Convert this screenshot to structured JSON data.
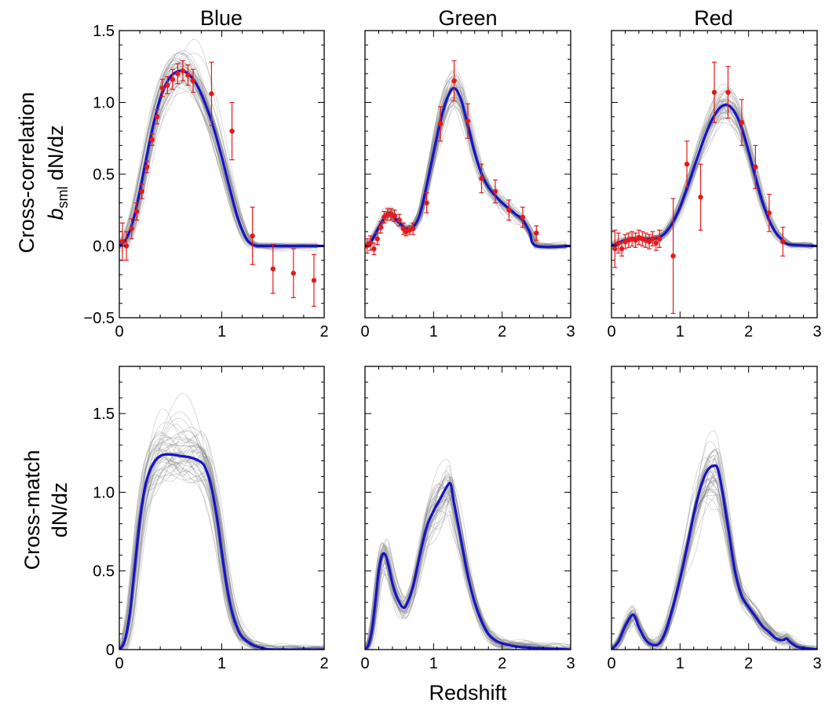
{
  "colors": {
    "median": "#1414c8",
    "points": "#e31a1c",
    "ensemble": "#7a7a7a"
  },
  "titles": {
    "blue": "Blue",
    "green": "Green",
    "red": "Red"
  },
  "ylabels": {
    "top_line1": "Cross-correlation",
    "top_line2_b": "b",
    "top_line2_sub": "sml",
    "top_line2_rest": " dN/dz",
    "bottom_line1": "Cross-match",
    "bottom_line2": "dN/dz"
  },
  "xlabel": "Redshift",
  "chart_data": [
    {
      "type": "line",
      "row": "cross-correlation",
      "column": "Blue",
      "xlim": [
        0,
        2
      ],
      "ylim": [
        -0.5,
        1.5
      ],
      "xticks": [
        "0",
        "1",
        "2"
      ],
      "yticks": [
        "1.5",
        "1.0",
        "0.5",
        "0.0",
        "−0.5"
      ],
      "median_curve": {
        "x": [
          0,
          0.05,
          0.1,
          0.15,
          0.2,
          0.25,
          0.3,
          0.35,
          0.4,
          0.45,
          0.5,
          0.55,
          0.6,
          0.65,
          0.7,
          0.75,
          0.8,
          0.85,
          0.9,
          0.95,
          1.0,
          1.05,
          1.1,
          1.15,
          1.2,
          1.25,
          1.3,
          1.35,
          1.4,
          2.0
        ],
        "y": [
          0.0,
          0.03,
          0.1,
          0.22,
          0.38,
          0.56,
          0.74,
          0.9,
          1.03,
          1.12,
          1.18,
          1.21,
          1.22,
          1.21,
          1.18,
          1.13,
          1.06,
          0.97,
          0.87,
          0.75,
          0.62,
          0.48,
          0.34,
          0.21,
          0.11,
          0.04,
          0.01,
          0.0,
          0.0,
          0.0
        ]
      },
      "points": [
        {
          "x": 0.03,
          "y": 0.03,
          "err": 0.13
        },
        {
          "x": 0.07,
          "y": 0.0,
          "err": 0.1
        },
        {
          "x": 0.12,
          "y": 0.12,
          "err": 0.07
        },
        {
          "x": 0.17,
          "y": 0.24,
          "err": 0.06
        },
        {
          "x": 0.22,
          "y": 0.38,
          "err": 0.05
        },
        {
          "x": 0.27,
          "y": 0.55,
          "err": 0.04
        },
        {
          "x": 0.32,
          "y": 0.74,
          "err": 0.04
        },
        {
          "x": 0.37,
          "y": 0.9,
          "err": 0.05
        },
        {
          "x": 0.42,
          "y": 1.1,
          "err": 0.06
        },
        {
          "x": 0.47,
          "y": 1.12,
          "err": 0.06
        },
        {
          "x": 0.52,
          "y": 1.16,
          "err": 0.07
        },
        {
          "x": 0.57,
          "y": 1.2,
          "err": 0.07
        },
        {
          "x": 0.62,
          "y": 1.22,
          "err": 0.07
        },
        {
          "x": 0.67,
          "y": 1.19,
          "err": 0.07
        },
        {
          "x": 0.72,
          "y": 1.15,
          "err": 0.08
        },
        {
          "x": 0.9,
          "y": 1.06,
          "err": 0.22
        },
        {
          "x": 1.1,
          "y": 0.8,
          "err": 0.2
        },
        {
          "x": 1.3,
          "y": 0.07,
          "err": 0.2
        },
        {
          "x": 1.5,
          "y": -0.16,
          "err": 0.17
        },
        {
          "x": 1.7,
          "y": -0.19,
          "err": 0.17
        },
        {
          "x": 1.9,
          "y": -0.24,
          "err": 0.18
        }
      ]
    },
    {
      "type": "line",
      "row": "cross-correlation",
      "column": "Green",
      "xlim": [
        0,
        3
      ],
      "ylim": [
        -0.5,
        1.5
      ],
      "xticks": [
        "0",
        "1",
        "2",
        "3"
      ],
      "yticks": [],
      "median_curve": {
        "x": [
          0,
          0.1,
          0.2,
          0.3,
          0.35,
          0.4,
          0.5,
          0.6,
          0.7,
          0.8,
          0.9,
          1.0,
          1.1,
          1.2,
          1.3,
          1.4,
          1.5,
          1.6,
          1.7,
          1.8,
          1.9,
          2.0,
          2.1,
          2.2,
          2.3,
          2.4,
          2.5,
          3.0
        ],
        "y": [
          0.0,
          0.04,
          0.13,
          0.21,
          0.23,
          0.21,
          0.16,
          0.12,
          0.13,
          0.22,
          0.42,
          0.65,
          0.87,
          1.03,
          1.1,
          1.02,
          0.84,
          0.65,
          0.5,
          0.41,
          0.35,
          0.3,
          0.26,
          0.22,
          0.18,
          0.1,
          0.0,
          0.0
        ]
      },
      "points": [
        {
          "x": 0.03,
          "y": 0.0,
          "err": 0.05
        },
        {
          "x": 0.08,
          "y": 0.02,
          "err": 0.05
        },
        {
          "x": 0.13,
          "y": -0.02,
          "err": 0.04
        },
        {
          "x": 0.18,
          "y": 0.05,
          "err": 0.04
        },
        {
          "x": 0.23,
          "y": 0.13,
          "err": 0.04
        },
        {
          "x": 0.28,
          "y": 0.2,
          "err": 0.04
        },
        {
          "x": 0.33,
          "y": 0.22,
          "err": 0.04
        },
        {
          "x": 0.38,
          "y": 0.22,
          "err": 0.04
        },
        {
          "x": 0.43,
          "y": 0.21,
          "err": 0.04
        },
        {
          "x": 0.5,
          "y": 0.18,
          "err": 0.04
        },
        {
          "x": 0.56,
          "y": 0.12,
          "err": 0.04
        },
        {
          "x": 0.6,
          "y": 0.1,
          "err": 0.03
        },
        {
          "x": 0.65,
          "y": 0.11,
          "err": 0.03
        },
        {
          "x": 0.7,
          "y": 0.12,
          "err": 0.04
        },
        {
          "x": 0.9,
          "y": 0.3,
          "err": 0.07
        },
        {
          "x": 1.1,
          "y": 0.85,
          "err": 0.12
        },
        {
          "x": 1.3,
          "y": 1.15,
          "err": 0.14
        },
        {
          "x": 1.5,
          "y": 0.87,
          "err": 0.12
        },
        {
          "x": 1.7,
          "y": 0.47,
          "err": 0.1
        },
        {
          "x": 1.9,
          "y": 0.38,
          "err": 0.08
        },
        {
          "x": 2.1,
          "y": 0.25,
          "err": 0.07
        },
        {
          "x": 2.3,
          "y": 0.2,
          "err": 0.07
        },
        {
          "x": 2.5,
          "y": 0.09,
          "err": 0.05
        }
      ]
    },
    {
      "type": "line",
      "row": "cross-correlation",
      "column": "Red",
      "xlim": [
        0,
        3
      ],
      "ylim": [
        -0.5,
        1.5
      ],
      "xticks": [
        "0",
        "1",
        "2",
        "3"
      ],
      "yticks": [],
      "median_curve": {
        "x": [
          0,
          0.1,
          0.2,
          0.3,
          0.4,
          0.5,
          0.6,
          0.7,
          0.8,
          0.9,
          1.0,
          1.1,
          1.2,
          1.3,
          1.4,
          1.5,
          1.6,
          1.7,
          1.8,
          1.9,
          2.0,
          2.1,
          2.2,
          2.3,
          2.4,
          2.5,
          2.6,
          3.0
        ],
        "y": [
          0.0,
          0.02,
          0.04,
          0.05,
          0.05,
          0.05,
          0.05,
          0.06,
          0.1,
          0.17,
          0.27,
          0.4,
          0.54,
          0.68,
          0.81,
          0.91,
          0.97,
          0.98,
          0.93,
          0.82,
          0.66,
          0.48,
          0.31,
          0.18,
          0.09,
          0.04,
          0.01,
          0.0
        ]
      },
      "points": [
        {
          "x": 0.05,
          "y": -0.02,
          "err": 0.13
        },
        {
          "x": 0.1,
          "y": 0.02,
          "err": 0.07
        },
        {
          "x": 0.15,
          "y": -0.02,
          "err": 0.05
        },
        {
          "x": 0.2,
          "y": 0.03,
          "err": 0.05
        },
        {
          "x": 0.25,
          "y": 0.04,
          "err": 0.05
        },
        {
          "x": 0.3,
          "y": 0.05,
          "err": 0.05
        },
        {
          "x": 0.35,
          "y": 0.04,
          "err": 0.05
        },
        {
          "x": 0.4,
          "y": 0.06,
          "err": 0.05
        },
        {
          "x": 0.45,
          "y": 0.05,
          "err": 0.05
        },
        {
          "x": 0.5,
          "y": 0.04,
          "err": 0.05
        },
        {
          "x": 0.55,
          "y": 0.03,
          "err": 0.05
        },
        {
          "x": 0.6,
          "y": 0.05,
          "err": 0.05
        },
        {
          "x": 0.65,
          "y": 0.02,
          "err": 0.05
        },
        {
          "x": 0.7,
          "y": 0.05,
          "err": 0.06
        },
        {
          "x": 0.9,
          "y": -0.07,
          "err": 0.4
        },
        {
          "x": 1.1,
          "y": 0.57,
          "err": 0.16
        },
        {
          "x": 1.3,
          "y": 0.34,
          "err": 0.23
        },
        {
          "x": 1.5,
          "y": 1.07,
          "err": 0.21
        },
        {
          "x": 1.7,
          "y": 1.07,
          "err": 0.18
        },
        {
          "x": 1.9,
          "y": 0.86,
          "err": 0.16
        },
        {
          "x": 2.1,
          "y": 0.55,
          "err": 0.15
        },
        {
          "x": 2.3,
          "y": 0.23,
          "err": 0.13
        },
        {
          "x": 2.5,
          "y": 0.03,
          "err": 0.1
        }
      ]
    },
    {
      "type": "line",
      "row": "cross-match",
      "column": "Blue",
      "xlim": [
        0,
        2
      ],
      "ylim": [
        0,
        1.8
      ],
      "xticks": [
        "0",
        "1",
        "2"
      ],
      "yticks": [
        "1.5",
        "1.0",
        "0.5",
        "0"
      ],
      "median_curve": {
        "x": [
          0,
          0.05,
          0.1,
          0.15,
          0.2,
          0.25,
          0.3,
          0.35,
          0.4,
          0.45,
          0.5,
          0.6,
          0.7,
          0.8,
          0.85,
          0.9,
          0.95,
          1.0,
          1.05,
          1.1,
          1.15,
          1.2,
          1.3,
          1.4,
          1.5,
          2.0
        ],
        "y": [
          0.0,
          0.05,
          0.22,
          0.52,
          0.82,
          1.03,
          1.14,
          1.2,
          1.23,
          1.24,
          1.24,
          1.23,
          1.22,
          1.19,
          1.14,
          1.03,
          0.85,
          0.62,
          0.4,
          0.24,
          0.14,
          0.08,
          0.03,
          0.01,
          0.0,
          0.0
        ]
      }
    },
    {
      "type": "line",
      "row": "cross-match",
      "column": "Green",
      "xlim": [
        0,
        3
      ],
      "ylim": [
        0,
        1.8
      ],
      "xticks": [
        "0",
        "1",
        "2",
        "3"
      ],
      "yticks": [],
      "median_curve": {
        "x": [
          0,
          0.05,
          0.1,
          0.15,
          0.2,
          0.25,
          0.3,
          0.35,
          0.4,
          0.45,
          0.5,
          0.55,
          0.6,
          0.7,
          0.8,
          0.9,
          1.0,
          1.1,
          1.2,
          1.25,
          1.3,
          1.4,
          1.5,
          1.6,
          1.7,
          1.8,
          1.9,
          2.0,
          2.2,
          2.5,
          3.0
        ],
        "y": [
          0.0,
          0.03,
          0.12,
          0.3,
          0.5,
          0.6,
          0.6,
          0.52,
          0.42,
          0.35,
          0.3,
          0.27,
          0.28,
          0.4,
          0.6,
          0.78,
          0.88,
          0.96,
          1.04,
          1.05,
          0.93,
          0.7,
          0.47,
          0.3,
          0.18,
          0.1,
          0.06,
          0.04,
          0.02,
          0.01,
          0.0
        ]
      }
    },
    {
      "type": "line",
      "row": "cross-match",
      "column": "Red",
      "xlim": [
        0,
        3
      ],
      "ylim": [
        0,
        1.8
      ],
      "xticks": [
        "0",
        "1",
        "2",
        "3"
      ],
      "yticks": [],
      "median_curve": {
        "x": [
          0,
          0.1,
          0.2,
          0.3,
          0.35,
          0.4,
          0.5,
          0.6,
          0.7,
          0.8,
          0.9,
          1.0,
          1.1,
          1.2,
          1.3,
          1.4,
          1.5,
          1.55,
          1.6,
          1.7,
          1.8,
          1.9,
          2.0,
          2.1,
          2.2,
          2.3,
          2.4,
          2.5,
          2.55,
          2.6,
          2.7,
          2.8,
          3.0
        ],
        "y": [
          0.0,
          0.05,
          0.15,
          0.22,
          0.2,
          0.14,
          0.06,
          0.03,
          0.04,
          0.13,
          0.28,
          0.45,
          0.65,
          0.86,
          1.03,
          1.14,
          1.17,
          1.15,
          1.05,
          0.78,
          0.5,
          0.34,
          0.27,
          0.21,
          0.15,
          0.11,
          0.07,
          0.06,
          0.07,
          0.05,
          0.02,
          0.01,
          0.0
        ]
      }
    }
  ]
}
